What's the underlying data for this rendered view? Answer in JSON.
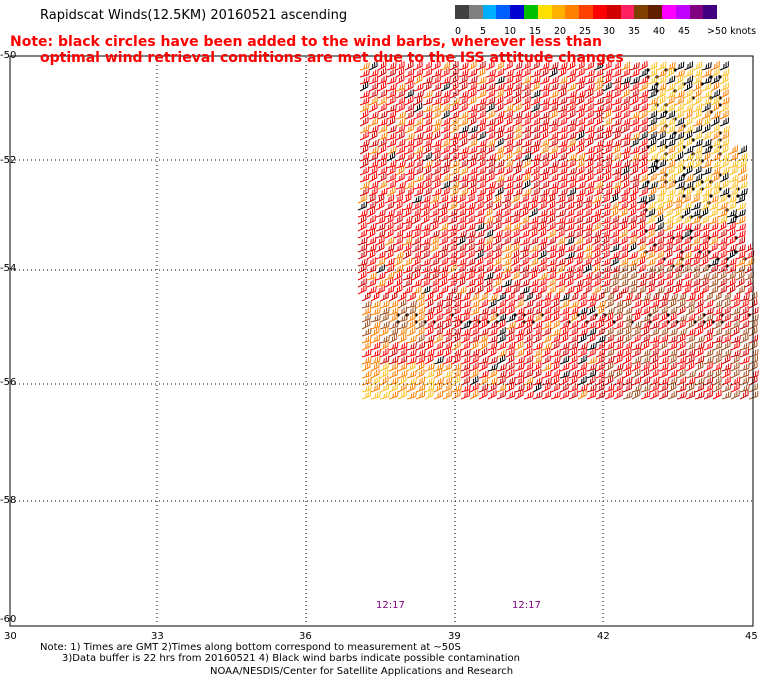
{
  "header": {
    "title": "Rapidscat Winds(12.5KM) 20160521 ascending"
  },
  "note": {
    "line1": "Note: black circles have been added to the wind barbs, wherever less than",
    "line2": "optimal wind retrieval conditions are met due to the ISS attitude changes"
  },
  "legend": {
    "colors": [
      "#404040",
      "#808080",
      "#00b0ff",
      "#0060ff",
      "#0000d0",
      "#00c000",
      "#ffe000",
      "#ffb000",
      "#ff8000",
      "#ff4000",
      "#ff0000",
      "#d00000",
      "#ff2060",
      "#804000",
      "#602000",
      "#ff00ff",
      "#c000ff",
      "#800080",
      "#400080"
    ],
    "labels": [
      "0",
      "5",
      "10",
      "15",
      "20",
      "25",
      "30",
      "35",
      "40",
      "45",
      ">50 knots"
    ]
  },
  "map": {
    "lat_labels": [
      "-50",
      "-52",
      "-54",
      "-56",
      "-58",
      "-60"
    ],
    "lon_labels": [
      "30",
      "33",
      "36",
      "39",
      "42",
      "45"
    ],
    "pass_times": [
      "12:17",
      "12:17"
    ],
    "barb_colors": {
      "strong": "#ff0000",
      "deep": "#d00000",
      "orange": "#ff8000",
      "brown": "#a05020",
      "yellow": "#ffc020",
      "black": "#000000"
    }
  },
  "footer": {
    "line1": "Note: 1) Times are GMT 2)Times along bottom correspond to measurement at ~50S",
    "line2": "3)Data buffer is 22 hrs from 20160521 4) Black wind barbs indicate possible contamination",
    "credit": "NOAA/NESDIS/Center for Satellite Applications and Research"
  }
}
